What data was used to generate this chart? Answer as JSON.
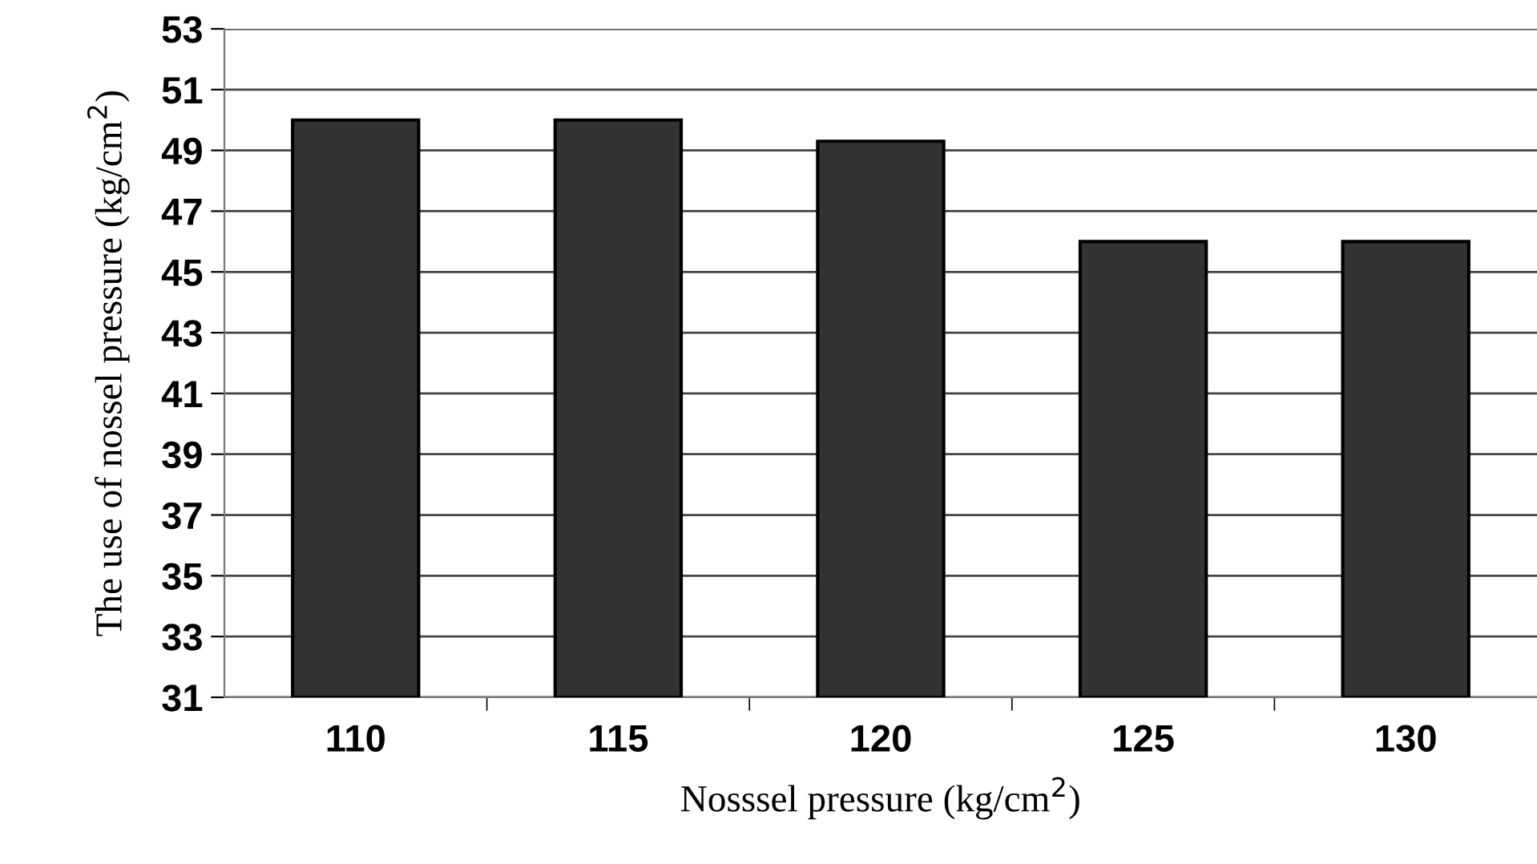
{
  "chart_data": {
    "type": "bar",
    "xlabel": "Nosssel pressure (kg/cm$^{2}$)",
    "ylabel": "The use of nossel pressure (kg/cm$^{2}$)",
    "categories": [
      "110",
      "115",
      "120",
      "125",
      "130"
    ],
    "values": [
      50.0,
      50.0,
      49.3,
      46.0,
      46.0
    ],
    "color": "#333333",
    "ylim": [
      31,
      53
    ],
    "yticks": [
      31,
      33,
      35,
      37,
      39,
      41,
      43,
      45,
      47,
      49,
      51,
      53
    ],
    "grid": "y"
  }
}
